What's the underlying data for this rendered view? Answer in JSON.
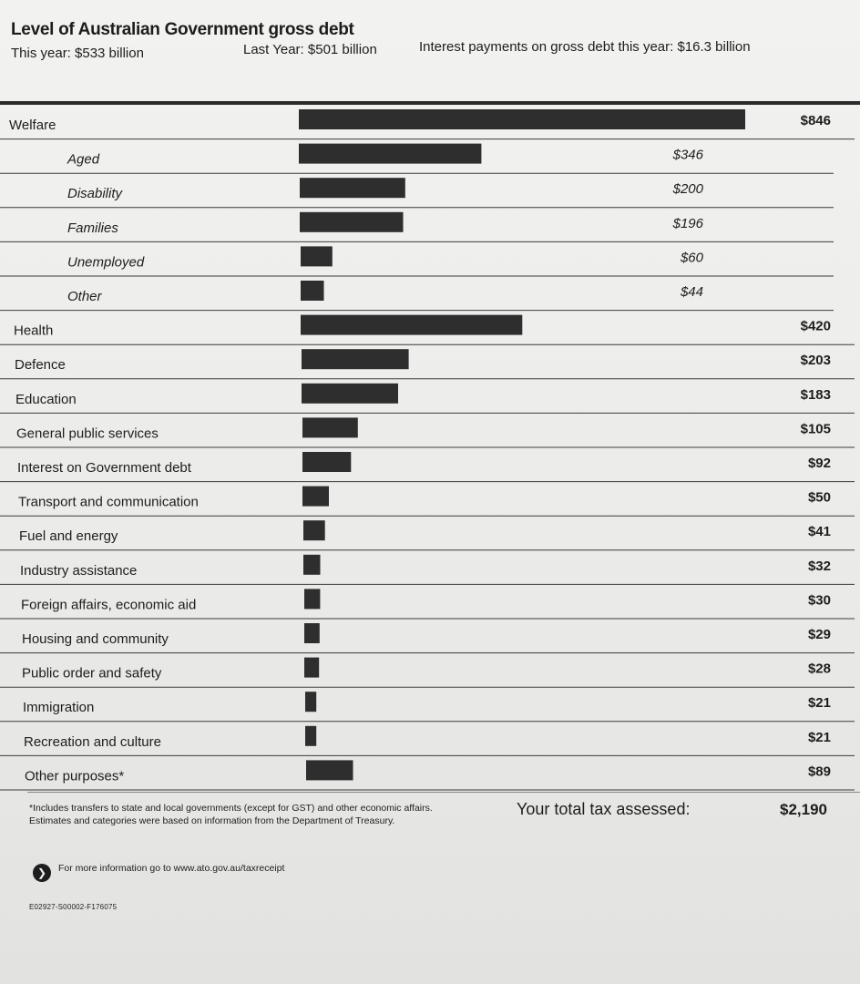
{
  "header": {
    "title": "Level of Australian Government gross debt",
    "this_year": "This year: $533 billion",
    "last_year": "Last Year: $501 billion",
    "interest": "Interest payments on gross debt this year: $16.3 billion"
  },
  "chart_data": {
    "type": "bar",
    "orientation": "horizontal",
    "bar_color": "#2e2e2e",
    "categories": [
      {
        "label": "Welfare",
        "value": 846,
        "value_label": "$846",
        "indent": false
      },
      {
        "label": "Aged",
        "value": 346,
        "value_label": "$346",
        "indent": true
      },
      {
        "label": "Disability",
        "value": 200,
        "value_label": "$200",
        "indent": true
      },
      {
        "label": "Families",
        "value": 196,
        "value_label": "$196",
        "indent": true
      },
      {
        "label": "Unemployed",
        "value": 60,
        "value_label": "$60",
        "indent": true
      },
      {
        "label": "Other",
        "value": 44,
        "value_label": "$44",
        "indent": true
      },
      {
        "label": "Health",
        "value": 420,
        "value_label": "$420",
        "indent": false
      },
      {
        "label": "Defence",
        "value": 203,
        "value_label": "$203",
        "indent": false
      },
      {
        "label": "Education",
        "value": 183,
        "value_label": "$183",
        "indent": false
      },
      {
        "label": "General public services",
        "value": 105,
        "value_label": "$105",
        "indent": false
      },
      {
        "label": "Interest on Government debt",
        "value": 92,
        "value_label": "$92",
        "indent": false
      },
      {
        "label": "Transport and communication",
        "value": 50,
        "value_label": "$50",
        "indent": false
      },
      {
        "label": "Fuel and energy",
        "value": 41,
        "value_label": "$41",
        "indent": false
      },
      {
        "label": "Industry assistance",
        "value": 32,
        "value_label": "$32",
        "indent": false
      },
      {
        "label": "Foreign affairs, economic aid",
        "value": 30,
        "value_label": "$30",
        "indent": false
      },
      {
        "label": "Housing and community",
        "value": 29,
        "value_label": "$29",
        "indent": false
      },
      {
        "label": "Public order and safety",
        "value": 28,
        "value_label": "$28",
        "indent": false
      },
      {
        "label": "Immigration",
        "value": 21,
        "value_label": "$21",
        "indent": false
      },
      {
        "label": "Recreation and culture",
        "value": 21,
        "value_label": "$21",
        "indent": false
      },
      {
        "label": "Other purposes*",
        "value": 89,
        "value_label": "$89",
        "indent": false
      }
    ]
  },
  "footer": {
    "footnote_line1": "*Includes transfers to state and local governments (except for GST) and other economic affairs.",
    "footnote_line2": "Estimates and categories were based on information from the Department of Treasury.",
    "total_label": "Your total tax assessed:",
    "total_value": "$2,190",
    "info_icon": "arrow-right-icon",
    "info_text": "For more information go to www.ato.gov.au/taxreceipt",
    "code": "E02927-S00002-F176075"
  }
}
